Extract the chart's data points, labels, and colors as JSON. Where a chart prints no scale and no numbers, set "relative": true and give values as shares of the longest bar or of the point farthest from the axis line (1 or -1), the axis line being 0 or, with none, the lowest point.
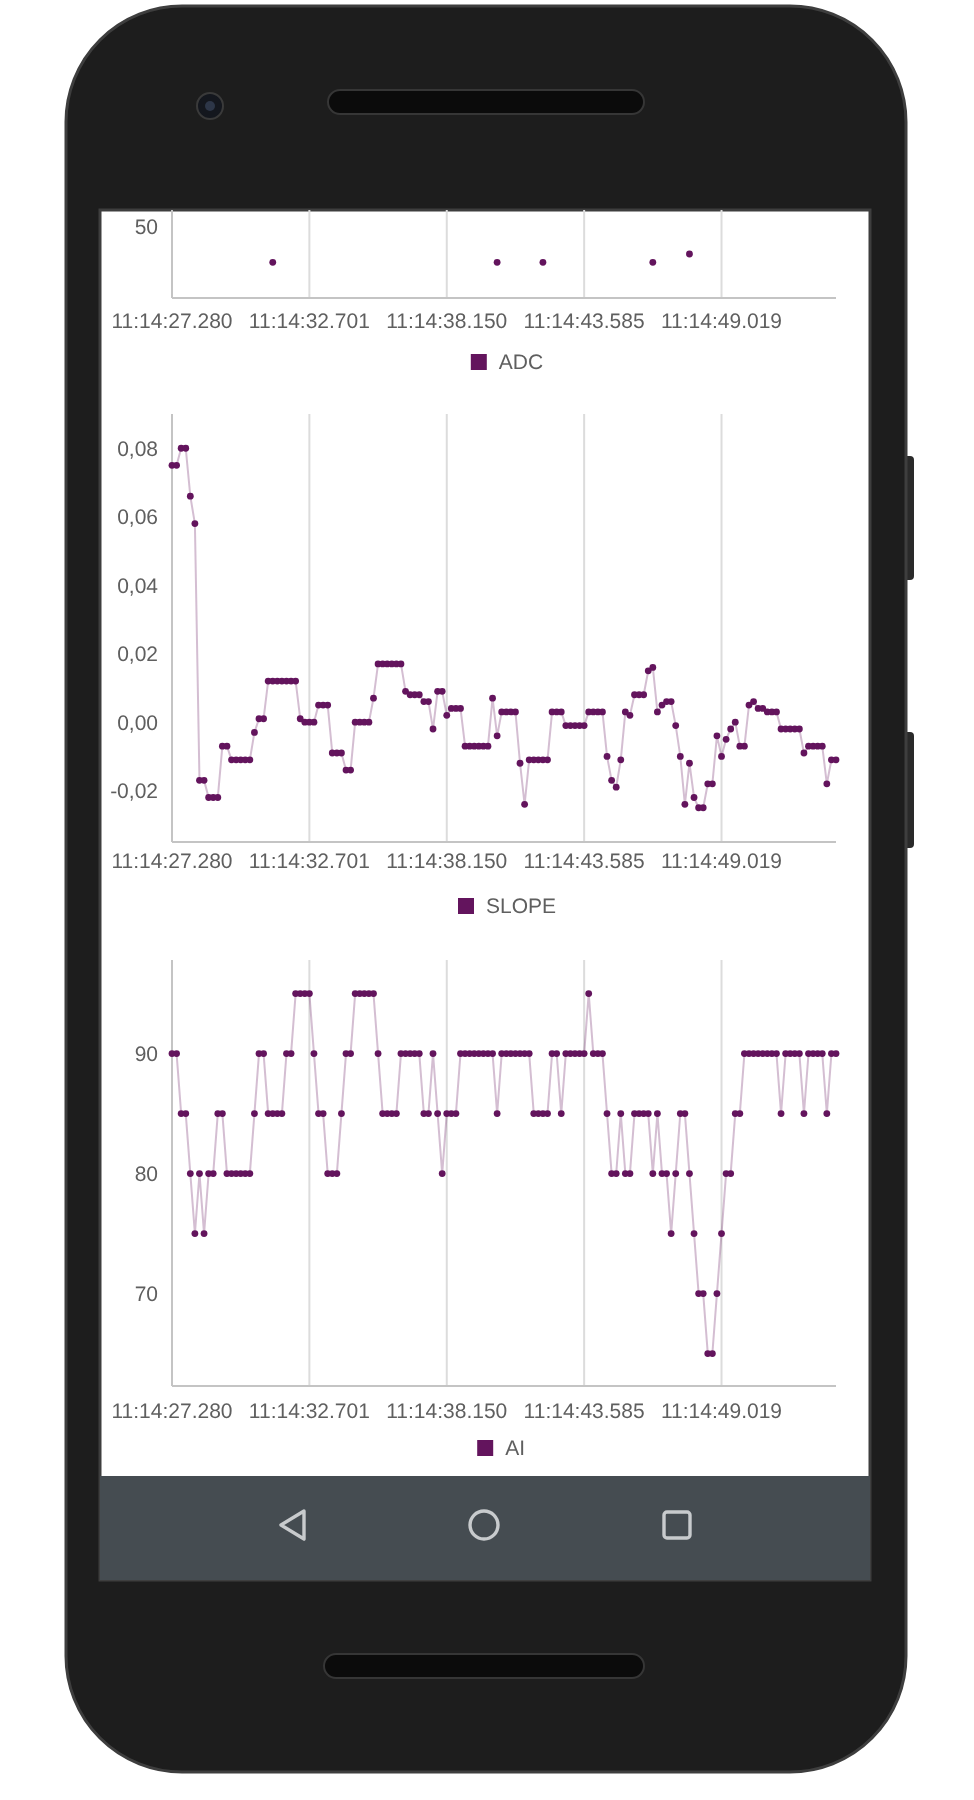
{
  "chart_data": [
    {
      "type": "scatter",
      "relative": true,
      "annotations": [
        "50"
      ],
      "categories": [
        "11:14:27.280",
        null,
        null,
        null,
        null,
        null,
        null,
        null,
        null,
        null,
        null,
        null,
        null,
        null,
        null,
        null,
        null,
        null,
        null,
        null,
        null,
        null,
        null,
        null,
        null,
        null,
        null,
        null,
        null,
        null,
        "11:14:32.701",
        null,
        null,
        null,
        null,
        null,
        null,
        null,
        null,
        null,
        null,
        null,
        null,
        null,
        null,
        null,
        null,
        null,
        null,
        null,
        null,
        null,
        null,
        null,
        null,
        null,
        null,
        null,
        null,
        null,
        "11:14:38.150",
        null,
        null,
        null,
        null,
        null,
        null,
        null,
        null,
        null,
        null,
        null,
        null,
        null,
        null,
        null,
        null,
        null,
        null,
        null,
        null,
        null,
        null,
        null,
        null,
        null,
        null,
        null,
        null,
        null,
        "11:14:43.585",
        null,
        null,
        null,
        null,
        null,
        null,
        null,
        null,
        null,
        null,
        null,
        null,
        null,
        null,
        null,
        null,
        null,
        null,
        null,
        null,
        null,
        null,
        null,
        null,
        null,
        null,
        null,
        null,
        null,
        "11:14:49.019",
        null,
        null,
        null,
        null,
        null,
        null,
        null,
        null,
        null,
        null,
        null,
        null,
        null,
        null,
        null,
        null,
        null,
        null,
        null,
        null,
        null,
        null,
        null,
        null,
        null
      ],
      "series": [
        {
          "name": "ADC",
          "color": "#63145d",
          "values": [
            null,
            null,
            null,
            null,
            null,
            null,
            null,
            null,
            null,
            null,
            null,
            null,
            null,
            null,
            null,
            null,
            null,
            null,
            null,
            null,
            null,
            null,
            0.81,
            null,
            null,
            null,
            null,
            null,
            null,
            null,
            null,
            null,
            null,
            null,
            null,
            null,
            null,
            null,
            null,
            null,
            null,
            null,
            null,
            null,
            null,
            null,
            null,
            null,
            null,
            null,
            null,
            null,
            null,
            null,
            null,
            null,
            null,
            null,
            null,
            null,
            null,
            null,
            null,
            null,
            null,
            null,
            null,
            null,
            null,
            null,
            null,
            0.81,
            null,
            null,
            null,
            null,
            null,
            null,
            null,
            null,
            null,
            0.81,
            null,
            null,
            null,
            null,
            null,
            null,
            null,
            null,
            null,
            null,
            null,
            null,
            null,
            null,
            null,
            null,
            null,
            null,
            null,
            null,
            null,
            null,
            null,
            0.81,
            null,
            null,
            null,
            null,
            null,
            null,
            null,
            1,
            null,
            null,
            null,
            null,
            null,
            null,
            null,
            null,
            null,
            null,
            null,
            null,
            null,
            null,
            null,
            null,
            null,
            null,
            null,
            null,
            null,
            null,
            null,
            null,
            null,
            null,
            null,
            null,
            null,
            null,
            null,
            null
          ]
        }
      ],
      "grid": "x",
      "legend": "bottom",
      "marker": "circle"
    },
    {
      "type": "line",
      "categories": [
        "11:14:27.280",
        null,
        null,
        null,
        null,
        null,
        null,
        null,
        null,
        null,
        null,
        null,
        null,
        null,
        null,
        null,
        null,
        null,
        null,
        null,
        null,
        null,
        null,
        null,
        null,
        null,
        null,
        null,
        null,
        null,
        "11:14:32.701",
        null,
        null,
        null,
        null,
        null,
        null,
        null,
        null,
        null,
        null,
        null,
        null,
        null,
        null,
        null,
        null,
        null,
        null,
        null,
        null,
        null,
        null,
        null,
        null,
        null,
        null,
        null,
        null,
        null,
        "11:14:38.150",
        null,
        null,
        null,
        null,
        null,
        null,
        null,
        null,
        null,
        null,
        null,
        null,
        null,
        null,
        null,
        null,
        null,
        null,
        null,
        null,
        null,
        null,
        null,
        null,
        null,
        null,
        null,
        null,
        null,
        "11:14:43.585",
        null,
        null,
        null,
        null,
        null,
        null,
        null,
        null,
        null,
        null,
        null,
        null,
        null,
        null,
        null,
        null,
        null,
        null,
        null,
        null,
        null,
        null,
        null,
        null,
        null,
        null,
        null,
        null,
        null,
        "11:14:49.019",
        null,
        null,
        null,
        null,
        null,
        null,
        null,
        null,
        null,
        null,
        null,
        null,
        null,
        null,
        null,
        null,
        null,
        null,
        null,
        null,
        null,
        null,
        null,
        null,
        null
      ],
      "series": [
        {
          "name": "SLOPE",
          "color": "#63145d",
          "values": [
            0.075,
            0.075,
            0.08,
            0.08,
            0.066,
            0.058,
            -0.017,
            -0.017,
            -0.022,
            -0.022,
            -0.022,
            -0.007,
            -0.007,
            -0.011,
            -0.011,
            -0.011,
            -0.011,
            -0.011,
            -0.003,
            0.001,
            0.001,
            0.012,
            0.012,
            0.012,
            0.012,
            0.012,
            0.012,
            0.012,
            0.001,
            0.0,
            0.0,
            0.0,
            0.005,
            0.005,
            0.005,
            -0.009,
            -0.009,
            -0.009,
            -0.014,
            -0.014,
            0.0,
            0.0,
            0.0,
            0.0,
            0.007,
            0.017,
            0.017,
            0.017,
            0.017,
            0.017,
            0.017,
            0.009,
            0.008,
            0.008,
            0.008,
            0.006,
            0.006,
            -0.002,
            0.009,
            0.009,
            0.002,
            0.004,
            0.004,
            0.004,
            -0.007,
            -0.007,
            -0.007,
            -0.007,
            -0.007,
            -0.007,
            0.007,
            -0.004,
            0.003,
            0.003,
            0.003,
            0.003,
            -0.012,
            -0.024,
            -0.011,
            -0.011,
            -0.011,
            -0.011,
            -0.011,
            0.003,
            0.003,
            0.003,
            -0.001,
            -0.001,
            -0.001,
            -0.001,
            -0.001,
            0.003,
            0.003,
            0.003,
            0.003,
            -0.01,
            -0.017,
            -0.019,
            -0.011,
            0.003,
            0.002,
            0.008,
            0.008,
            0.008,
            0.015,
            0.016,
            0.003,
            0.005,
            0.006,
            0.006,
            -0.001,
            -0.01,
            -0.024,
            -0.012,
            -0.022,
            -0.025,
            -0.025,
            -0.018,
            -0.018,
            -0.004,
            -0.01,
            -0.005,
            -0.002,
            0.0,
            -0.007,
            -0.007,
            0.005,
            0.006,
            0.004,
            0.004,
            0.003,
            0.003,
            0.003,
            -0.002,
            -0.002,
            -0.002,
            -0.002,
            -0.002,
            -0.009,
            -0.007,
            -0.007,
            -0.007,
            -0.007,
            -0.018,
            -0.011,
            -0.011
          ]
        }
      ],
      "ylim": [
        -0.035,
        0.09
      ],
      "yticks": [
        {
          "value": -0.02,
          "label": "-0,02"
        },
        {
          "value": 0,
          "label": "0,00"
        },
        {
          "value": 0.02,
          "label": "0,02"
        },
        {
          "value": 0.04,
          "label": "0,04"
        },
        {
          "value": 0.06,
          "label": "0,06"
        },
        {
          "value": 0.08,
          "label": "0,08"
        }
      ],
      "grid": "x",
      "legend": "bottom",
      "marker": "circle",
      "line_style": "solid"
    },
    {
      "type": "line",
      "categories": [
        "11:14:27.280",
        null,
        null,
        null,
        null,
        null,
        null,
        null,
        null,
        null,
        null,
        null,
        null,
        null,
        null,
        null,
        null,
        null,
        null,
        null,
        null,
        null,
        null,
        null,
        null,
        null,
        null,
        null,
        null,
        null,
        "11:14:32.701",
        null,
        null,
        null,
        null,
        null,
        null,
        null,
        null,
        null,
        null,
        null,
        null,
        null,
        null,
        null,
        null,
        null,
        null,
        null,
        null,
        null,
        null,
        null,
        null,
        null,
        null,
        null,
        null,
        null,
        "11:14:38.150",
        null,
        null,
        null,
        null,
        null,
        null,
        null,
        null,
        null,
        null,
        null,
        null,
        null,
        null,
        null,
        null,
        null,
        null,
        null,
        null,
        null,
        null,
        null,
        null,
        null,
        null,
        null,
        null,
        null,
        "11:14:43.585",
        null,
        null,
        null,
        null,
        null,
        null,
        null,
        null,
        null,
        null,
        null,
        null,
        null,
        null,
        null,
        null,
        null,
        null,
        null,
        null,
        null,
        null,
        null,
        null,
        null,
        null,
        null,
        null,
        null,
        "11:14:49.019",
        null,
        null,
        null,
        null,
        null,
        null,
        null,
        null,
        null,
        null,
        null,
        null,
        null,
        null,
        null,
        null,
        null,
        null,
        null,
        null,
        null,
        null,
        null,
        null,
        null
      ],
      "series": [
        {
          "name": "AI",
          "color": "#63145d",
          "values": [
            90,
            90,
            85,
            85,
            80,
            75,
            80,
            75,
            80,
            80,
            85,
            85,
            80,
            80,
            80,
            80,
            80,
            80,
            85,
            90,
            90,
            85,
            85,
            85,
            85,
            90,
            90,
            95,
            95,
            95,
            95,
            90,
            85,
            85,
            80,
            80,
            80,
            85,
            90,
            90,
            95,
            95,
            95,
            95,
            95,
            90,
            85,
            85,
            85,
            85,
            90,
            90,
            90,
            90,
            90,
            85,
            85,
            90,
            85,
            80,
            85,
            85,
            85,
            90,
            90,
            90,
            90,
            90,
            90,
            90,
            90,
            85,
            90,
            90,
            90,
            90,
            90,
            90,
            90,
            85,
            85,
            85,
            85,
            90,
            90,
            85,
            90,
            90,
            90,
            90,
            90,
            95,
            90,
            90,
            90,
            85,
            80,
            80,
            85,
            80,
            80,
            85,
            85,
            85,
            85,
            80,
            85,
            80,
            80,
            75,
            80,
            85,
            85,
            80,
            75,
            70,
            70,
            65,
            65,
            70,
            75,
            80,
            80,
            85,
            85,
            90,
            90,
            90,
            90,
            90,
            90,
            90,
            90,
            85,
            90,
            90,
            90,
            90,
            85,
            90,
            90,
            90,
            90,
            85,
            90,
            90
          ]
        }
      ],
      "ylim": [
        62.3,
        97.8
      ],
      "yticks": [
        70,
        80,
        90
      ],
      "grid": "x",
      "legend": "bottom",
      "marker": "circle",
      "line_style": "solid"
    }
  ]
}
